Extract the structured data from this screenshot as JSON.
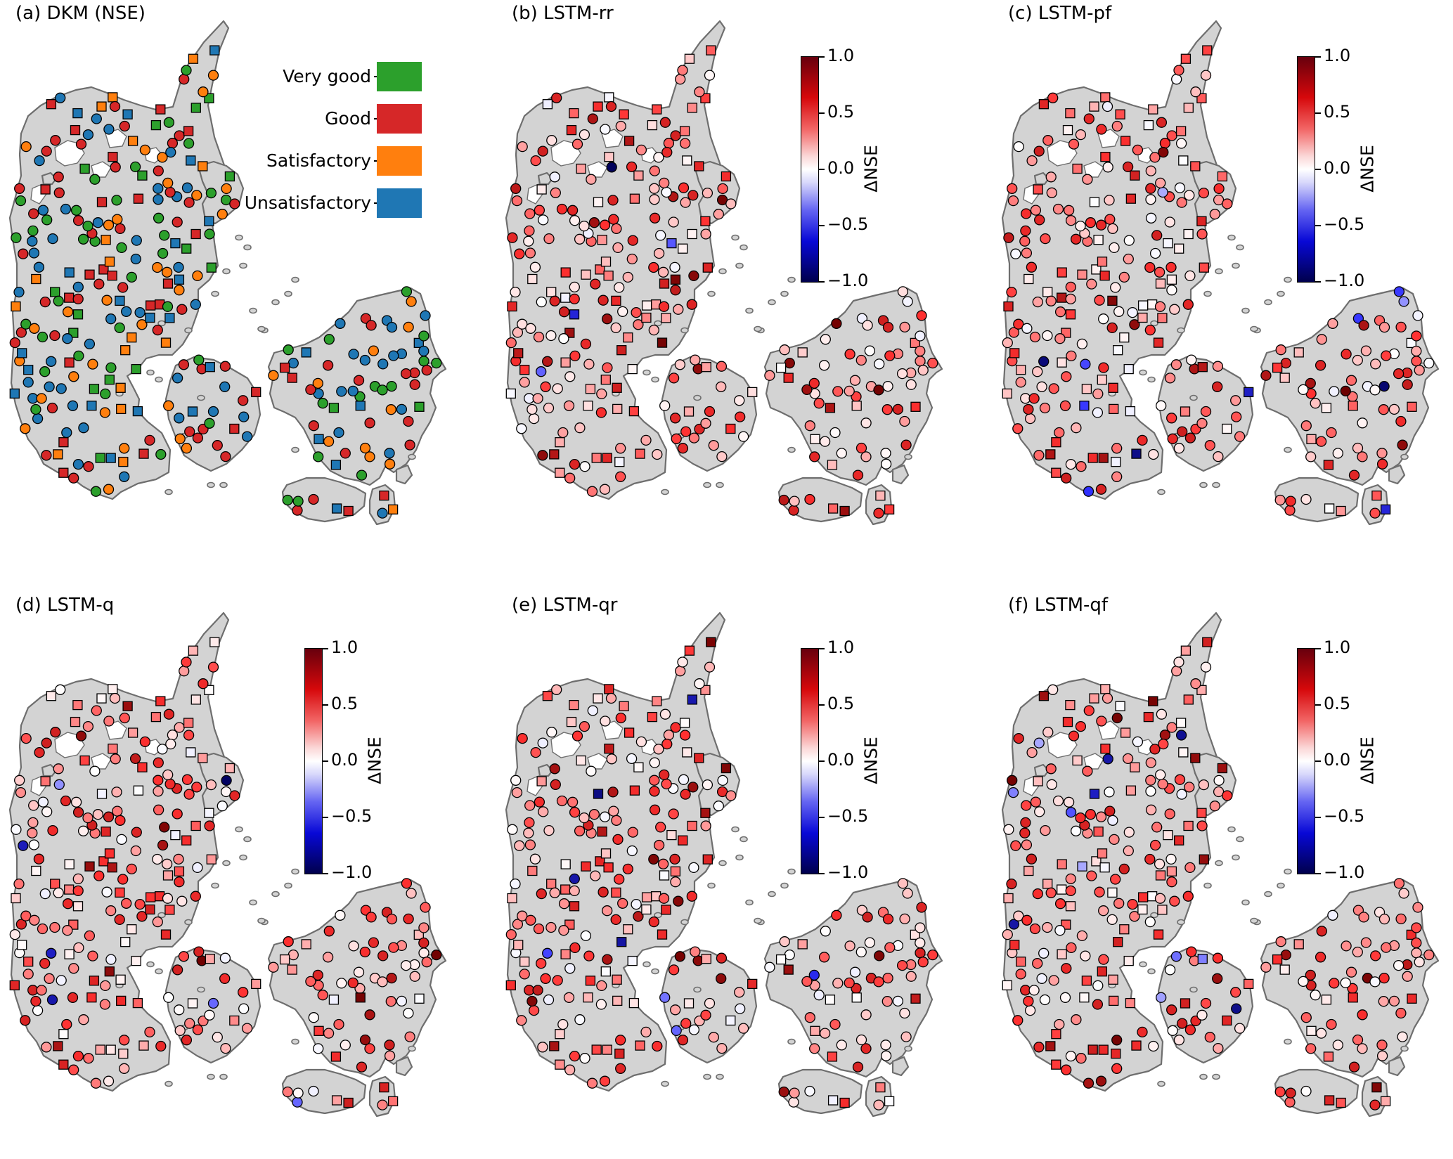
{
  "figure": {
    "panels": [
      {
        "id": "a",
        "title": "(a) DKM (NSE)",
        "kind": "category"
      },
      {
        "id": "b",
        "title": "(b) LSTM-rr",
        "kind": "delta"
      },
      {
        "id": "c",
        "title": "(c) LSTM-pf",
        "kind": "delta"
      },
      {
        "id": "d",
        "title": "(d) LSTM-q",
        "kind": "delta"
      },
      {
        "id": "e",
        "title": "(e) LSTM-qr",
        "kind": "delta"
      },
      {
        "id": "f",
        "title": "(f) LSTM-qf",
        "kind": "delta"
      }
    ],
    "legend": {
      "items": [
        {
          "label": "Very good",
          "color": "#2ca02c"
        },
        {
          "label": "Good",
          "color": "#d62728"
        },
        {
          "label": "Satisfactory",
          "color": "#ff7f0e"
        },
        {
          "label": "Unsatisfactory",
          "color": "#1f77b4"
        }
      ]
    },
    "colorbar": {
      "label": "ΔNSE",
      "ticks": [
        "1.0",
        "0.5",
        "0.0",
        "−0.5",
        "−1.0"
      ],
      "range": [
        -1.0,
        1.0
      ],
      "colormap": "seismic"
    },
    "colors": {
      "land": "#d3d3d3",
      "coast": "#6e6e6e",
      "marker_edge": "#000000"
    }
  }
}
